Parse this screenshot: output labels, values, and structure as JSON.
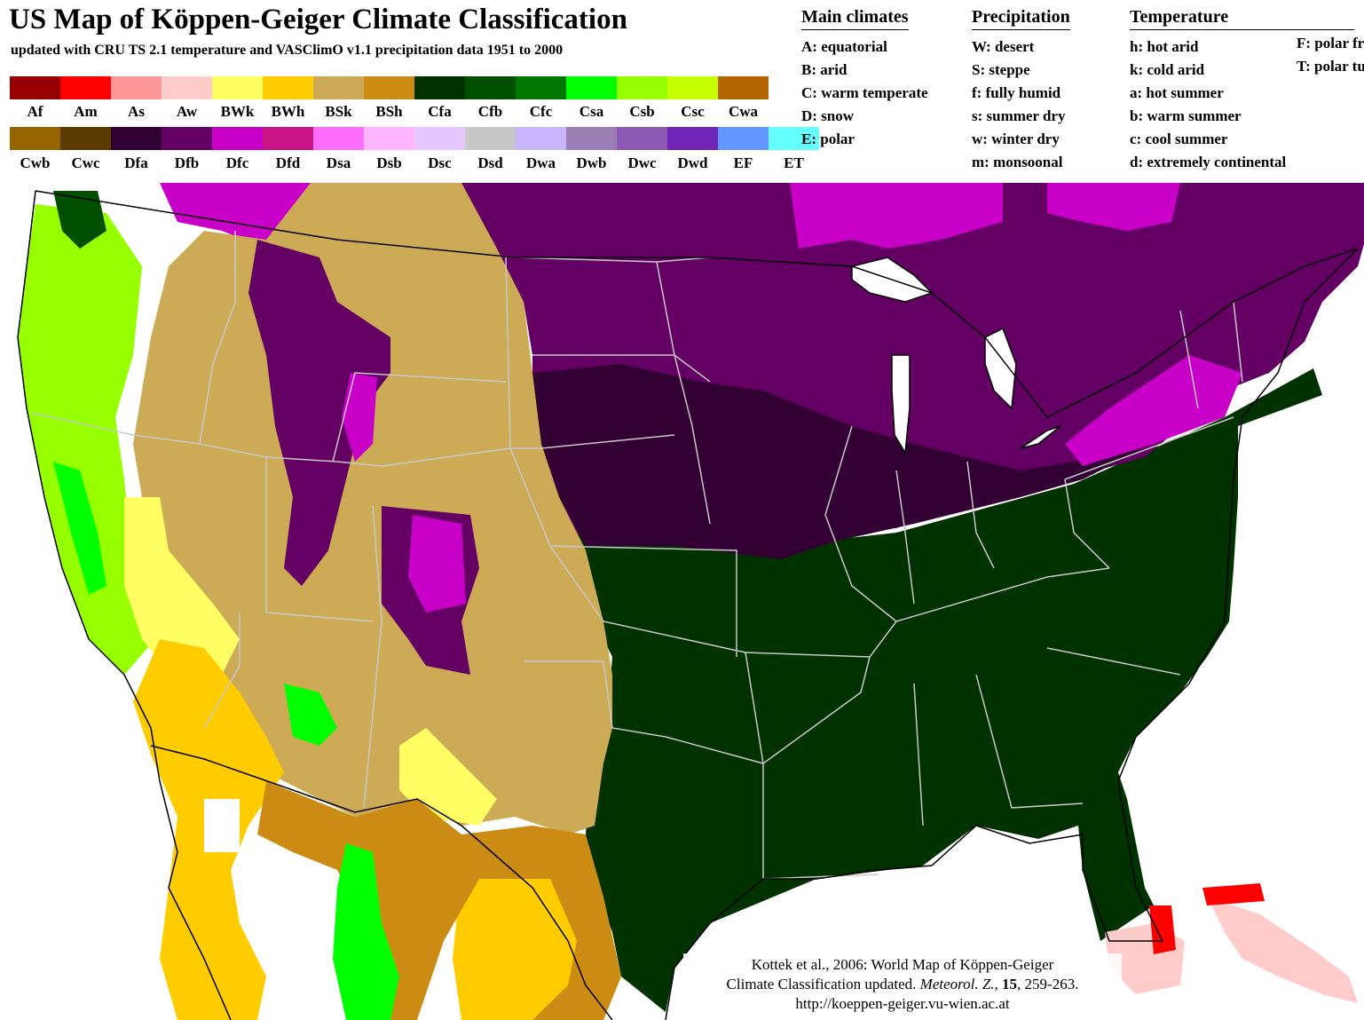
{
  "title": "US Map of Köppen-Geiger Climate Classification",
  "subtitle": "updated with CRU TS 2.1 temperature and VASClimO v1.1 precipitation data 1951 to 2000",
  "legend_row1": [
    {
      "code": "Af",
      "color": "#960000"
    },
    {
      "code": "Am",
      "color": "#ff0000"
    },
    {
      "code": "As",
      "color": "#ff9999"
    },
    {
      "code": "Aw",
      "color": "#ffcccc"
    },
    {
      "code": "BWk",
      "color": "#ffff64"
    },
    {
      "code": "BWh",
      "color": "#ffcc00"
    },
    {
      "code": "BSk",
      "color": "#cdaa55"
    },
    {
      "code": "BSh",
      "color": "#cc8c14"
    },
    {
      "code": "Cfa",
      "color": "#003200"
    },
    {
      "code": "Cfb",
      "color": "#005000"
    },
    {
      "code": "Cfc",
      "color": "#007800"
    },
    {
      "code": "Csa",
      "color": "#00ff00"
    },
    {
      "code": "Csb",
      "color": "#96ff00"
    },
    {
      "code": "Csc",
      "color": "#c8ff00"
    },
    {
      "code": "Cwa",
      "color": "#b46400"
    }
  ],
  "legend_row2": [
    {
      "code": "Cwb",
      "color": "#966400"
    },
    {
      "code": "Cwc",
      "color": "#5a3c00"
    },
    {
      "code": "Dfa",
      "color": "#320032"
    },
    {
      "code": "Dfb",
      "color": "#640064"
    },
    {
      "code": "Dfc",
      "color": "#c800c8"
    },
    {
      "code": "Dfd",
      "color": "#c81485"
    },
    {
      "code": "Dsa",
      "color": "#ff6dff"
    },
    {
      "code": "Dsb",
      "color": "#ffb4ff"
    },
    {
      "code": "Dsc",
      "color": "#e6c8ff"
    },
    {
      "code": "Dsd",
      "color": "#c8c8c8"
    },
    {
      "code": "Dwa",
      "color": "#c8b4ff"
    },
    {
      "code": "Dwb",
      "color": "#9a7fb3"
    },
    {
      "code": "Dwc",
      "color": "#8c59b4"
    },
    {
      "code": "Dwd",
      "color": "#6f25b5"
    },
    {
      "code": "EF",
      "color": "#6496ff"
    },
    {
      "code": "ET",
      "color": "#64ffff"
    }
  ],
  "main_climates": {
    "heading": "Main climates",
    "items": [
      "A: equatorial",
      "B: arid",
      "C: warm temperate",
      "D: snow",
      "E: polar"
    ]
  },
  "precipitation": {
    "heading": "Precipitation",
    "items": [
      "W: desert",
      "S: steppe",
      "f: fully humid",
      "s: summer dry",
      "w: winter dry",
      "m: monsoonal"
    ]
  },
  "temperature": {
    "heading": "Temperature",
    "items": [
      "h: hot arid",
      "k: cold arid",
      "a: hot summer",
      "b: warm summer",
      "c: cool summer",
      "d: extremely continental"
    ],
    "items_right": [
      "F: polar frost",
      "T: polar tundra"
    ]
  },
  "credit": {
    "line1": "Kottek et al., 2006: World Map of Köppen-Geiger",
    "line2_a": "Climate Classification updated.",
    "line2_journal": "Meteorol. Z.",
    "line2_vol": "15",
    "line2_pages": ", 259-263.",
    "line3": "http://koeppen-geiger.vu-wien.ac.at"
  }
}
